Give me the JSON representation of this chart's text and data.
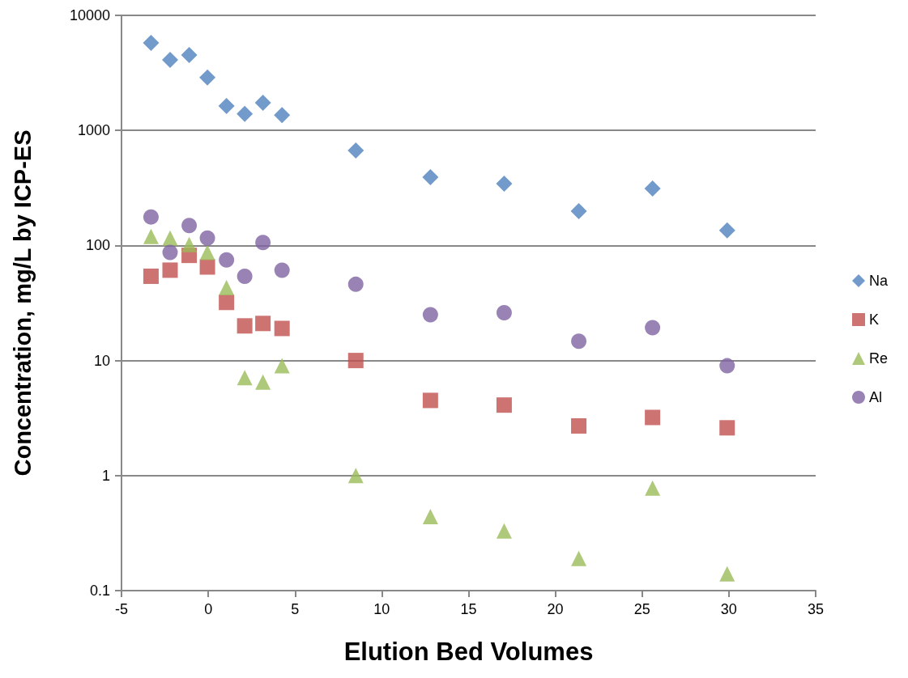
{
  "chart_data": {
    "type": "scatter",
    "xlabel": "Elution Bed Volumes",
    "ylabel": "Concentration, mg/L by ICP-ES",
    "x": [
      -3.3,
      -2.2,
      -1.1,
      -0.05,
      1.05,
      2.1,
      3.15,
      4.25,
      8.5,
      12.8,
      17.05,
      21.35,
      25.6,
      29.9
    ],
    "series": [
      {
        "name": "Na",
        "color": "#4f81bd",
        "marker": "diamond",
        "values": [
          5770,
          4100,
          4520,
          2880,
          1630,
          1390,
          1740,
          1360,
          670,
          393,
          345,
          199,
          313,
          135
        ]
      },
      {
        "name": "K",
        "color": "#c0504d",
        "marker": "square",
        "values": [
          54,
          61,
          82,
          65,
          32,
          20,
          21,
          19,
          10,
          4.5,
          4.1,
          2.7,
          3.2,
          2.6
        ]
      },
      {
        "name": "Re",
        "color": "#9bbb59",
        "marker": "triangle",
        "values": [
          120,
          116,
          102,
          87,
          43,
          7.1,
          6.5,
          9.0,
          1.0,
          0.44,
          0.33,
          0.19,
          0.78,
          0.14
        ]
      },
      {
        "name": "Al",
        "color": "#8064a2",
        "marker": "circle",
        "values": [
          177,
          87,
          149,
          116,
          75,
          54,
          106,
          61,
          46,
          25,
          26,
          14.7,
          19.3,
          9
        ]
      }
    ],
    "xlim": [
      -5,
      35
    ],
    "xticks": [
      -5,
      0,
      5,
      10,
      15,
      20,
      25,
      30,
      35
    ],
    "ylim": [
      0.1,
      10000
    ],
    "yticks": [
      0.1,
      1,
      10,
      100,
      1000,
      10000
    ],
    "log": "y",
    "grid": "y",
    "legend": "right"
  }
}
